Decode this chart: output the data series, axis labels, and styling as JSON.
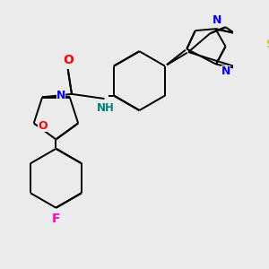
{
  "bg_color": "#ebebeb",
  "figsize": [
    3.0,
    3.0
  ],
  "dpi": 100,
  "colors": {
    "bond": "#000000",
    "N": "#0000ff",
    "O": "#ff0000",
    "S": "#cccc00",
    "F": "#ff00cc",
    "NH": "#008080",
    "C": "#000000"
  },
  "bond_lw": 1.4,
  "dbo": 0.012
}
